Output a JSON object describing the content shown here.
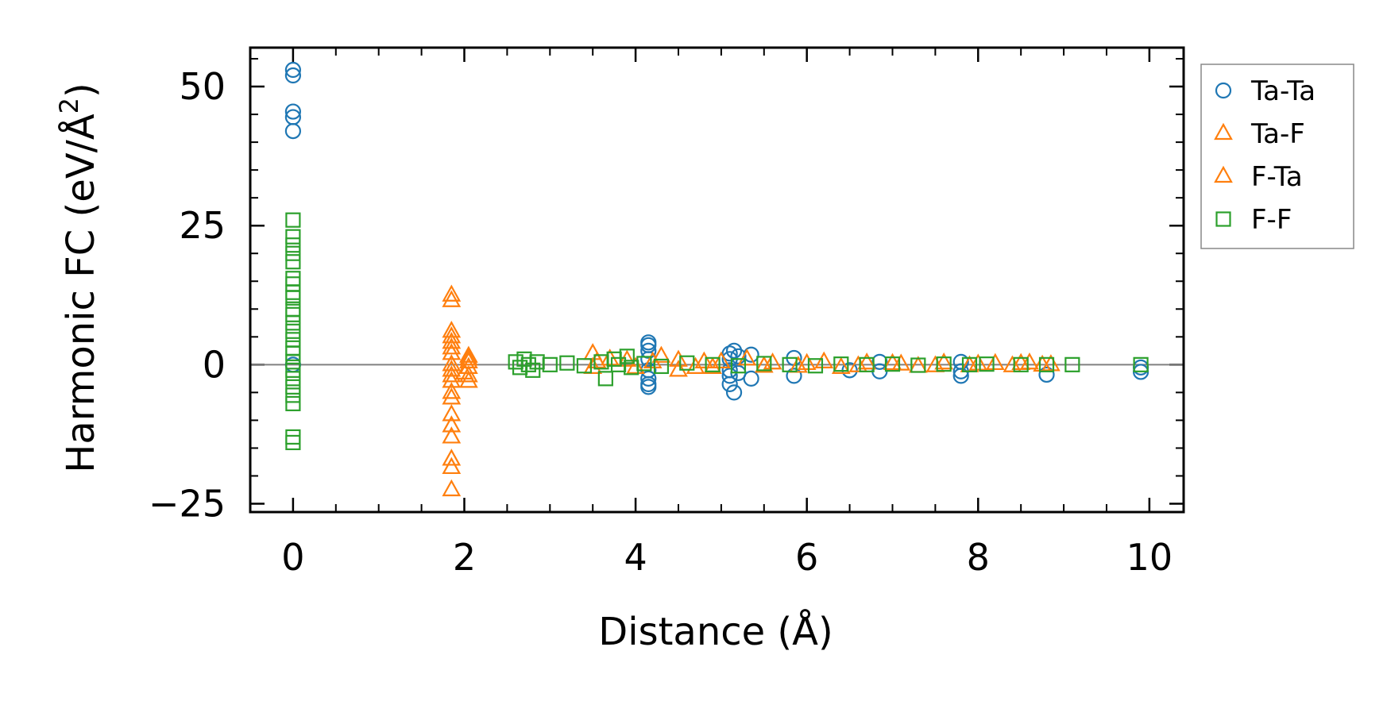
{
  "chart_data": {
    "type": "scatter",
    "title": "",
    "xlabel": "Distance (Å)",
    "ylabel_main": "Harmonic FC (eV/Å",
    "ylabel_sup": "2",
    "ylabel_close": ")",
    "xlim": [
      -0.5,
      10.4
    ],
    "ylim": [
      -26.5,
      57
    ],
    "x_ticks": [
      0,
      2,
      4,
      6,
      8,
      10
    ],
    "y_ticks": [
      -25,
      0,
      25,
      50
    ],
    "x_tick_labels": [
      "0",
      "2",
      "4",
      "6",
      "8",
      "10"
    ],
    "y_tick_labels": [
      "−25",
      "0",
      "25",
      "50"
    ],
    "grid": false,
    "zero_line": true,
    "legend_position": "outside-top-right",
    "series": [
      {
        "name": "Ta-Ta",
        "marker": "circle",
        "color": "#1f77b4",
        "points": [
          [
            0,
            53
          ],
          [
            0,
            52
          ],
          [
            0,
            45.5
          ],
          [
            0,
            44.5
          ],
          [
            0,
            42
          ],
          [
            0,
            0
          ],
          [
            4.15,
            4
          ],
          [
            4.15,
            3.5
          ],
          [
            4.15,
            2.5
          ],
          [
            4.15,
            1
          ],
          [
            4.15,
            -1
          ],
          [
            4.15,
            -2.5
          ],
          [
            4.15,
            -3.5
          ],
          [
            4.15,
            -4
          ],
          [
            5.1,
            2
          ],
          [
            5.1,
            1
          ],
          [
            5.1,
            -1
          ],
          [
            5.1,
            -2
          ],
          [
            5.1,
            -3.5
          ],
          [
            5.15,
            2.5
          ],
          [
            5.15,
            -5
          ],
          [
            5.2,
            1.5
          ],
          [
            5.2,
            -1.5
          ],
          [
            5.35,
            1.8
          ],
          [
            5.35,
            -2.5
          ],
          [
            5.85,
            1.2
          ],
          [
            5.85,
            -2
          ],
          [
            6.5,
            -1
          ],
          [
            6.85,
            0.5
          ],
          [
            6.85,
            -1.2
          ],
          [
            7.8,
            0.5
          ],
          [
            7.8,
            -1.2
          ],
          [
            7.8,
            -2
          ],
          [
            8.8,
            -1.8
          ],
          [
            9.9,
            -0.5
          ],
          [
            9.9,
            -1.3
          ]
        ]
      },
      {
        "name": "Ta-F",
        "marker": "triangle",
        "color": "#ff7f0e",
        "points": [
          [
            1.85,
            12.5
          ],
          [
            1.85,
            11.5
          ],
          [
            1.85,
            6
          ],
          [
            1.85,
            5
          ],
          [
            1.85,
            4
          ],
          [
            1.85,
            2
          ],
          [
            1.85,
            -1
          ],
          [
            1.85,
            -3
          ],
          [
            1.85,
            -5
          ],
          [
            1.85,
            -6
          ],
          [
            1.85,
            -9
          ],
          [
            1.85,
            -11
          ],
          [
            1.85,
            -13
          ],
          [
            1.85,
            -17
          ],
          [
            1.85,
            -18.5
          ],
          [
            1.85,
            -22.5
          ],
          [
            2.05,
            1.5
          ],
          [
            2.05,
            0.5
          ],
          [
            2.05,
            -0.5
          ],
          [
            2.05,
            -2
          ],
          [
            2.05,
            -3
          ],
          [
            3.5,
            2
          ],
          [
            3.5,
            -0.5
          ],
          [
            3.7,
            1
          ],
          [
            3.9,
            0.8
          ],
          [
            4.0,
            -0.5
          ],
          [
            4.3,
            1.5
          ],
          [
            4.5,
            0.8
          ],
          [
            4.5,
            -1
          ],
          [
            4.8,
            0.5
          ],
          [
            4.9,
            -0.5
          ],
          [
            5.3,
            1
          ],
          [
            5.6,
            0.3
          ],
          [
            5.9,
            -0.3
          ],
          [
            6.2,
            0.5
          ],
          [
            6.4,
            -0.5
          ],
          [
            6.7,
            0.3
          ],
          [
            7.0,
            0.2
          ],
          [
            7.3,
            -0.3
          ],
          [
            7.6,
            0.3
          ],
          [
            7.9,
            -0.2
          ],
          [
            8.2,
            0.2
          ],
          [
            8.4,
            -0.2
          ],
          [
            8.6,
            0.3
          ],
          [
            8.85,
            0
          ]
        ]
      },
      {
        "name": "F-Ta",
        "marker": "triangle",
        "color": "#ff7f0e",
        "points": [
          [
            1.85,
            3
          ],
          [
            1.85,
            0
          ],
          [
            1.85,
            -2
          ],
          [
            2.0,
            -1.5
          ],
          [
            2.05,
            1
          ],
          [
            3.55,
            0.5
          ],
          [
            4.2,
            0.5
          ],
          [
            4.7,
            -0.5
          ],
          [
            5.0,
            0.5
          ],
          [
            5.5,
            -0.3
          ],
          [
            6.0,
            0.2
          ],
          [
            6.6,
            -0.2
          ],
          [
            7.1,
            0.1
          ],
          [
            7.5,
            -0.2
          ],
          [
            8.0,
            0.1
          ],
          [
            8.5,
            0.2
          ],
          [
            8.75,
            -0.1
          ]
        ]
      },
      {
        "name": "F-F",
        "marker": "square",
        "color": "#2ca02c",
        "points": [
          [
            0,
            26
          ],
          [
            0,
            23
          ],
          [
            0,
            21.5
          ],
          [
            0,
            20
          ],
          [
            0,
            18.5
          ],
          [
            0,
            15.5
          ],
          [
            0,
            14.5
          ],
          [
            0,
            13
          ],
          [
            0,
            12
          ],
          [
            0,
            10
          ],
          [
            0,
            9
          ],
          [
            0,
            7.5
          ],
          [
            0,
            6
          ],
          [
            0,
            4.5
          ],
          [
            0,
            3
          ],
          [
            0,
            2
          ],
          [
            0,
            0.5
          ],
          [
            0,
            -1
          ],
          [
            0,
            -2.5
          ],
          [
            0,
            -4
          ],
          [
            0,
            -5.5
          ],
          [
            0,
            -7
          ],
          [
            0,
            -13
          ],
          [
            0,
            -14
          ],
          [
            2.6,
            0.5
          ],
          [
            2.65,
            -0.5
          ],
          [
            2.7,
            1
          ],
          [
            2.75,
            0
          ],
          [
            2.8,
            -1
          ],
          [
            2.85,
            0.5
          ],
          [
            3.0,
            0
          ],
          [
            3.2,
            0.3
          ],
          [
            3.4,
            -0.2
          ],
          [
            3.6,
            0.5
          ],
          [
            3.65,
            -2.5
          ],
          [
            3.75,
            1
          ],
          [
            3.8,
            0
          ],
          [
            3.9,
            1.5
          ],
          [
            3.95,
            -0.5
          ],
          [
            4.1,
            0.2
          ],
          [
            4.3,
            -0.3
          ],
          [
            4.6,
            0.3
          ],
          [
            4.9,
            0
          ],
          [
            5.2,
            -0.2
          ],
          [
            5.5,
            0.2
          ],
          [
            5.8,
            0
          ],
          [
            6.1,
            -0.2
          ],
          [
            6.4,
            0.1
          ],
          [
            6.7,
            0
          ],
          [
            7.0,
            0.1
          ],
          [
            7.3,
            -0.1
          ],
          [
            7.6,
            0.1
          ],
          [
            7.9,
            0
          ],
          [
            8.1,
            0.1
          ],
          [
            8.5,
            0
          ],
          [
            8.8,
            0
          ],
          [
            9.1,
            0
          ],
          [
            9.9,
            0
          ]
        ]
      }
    ]
  }
}
